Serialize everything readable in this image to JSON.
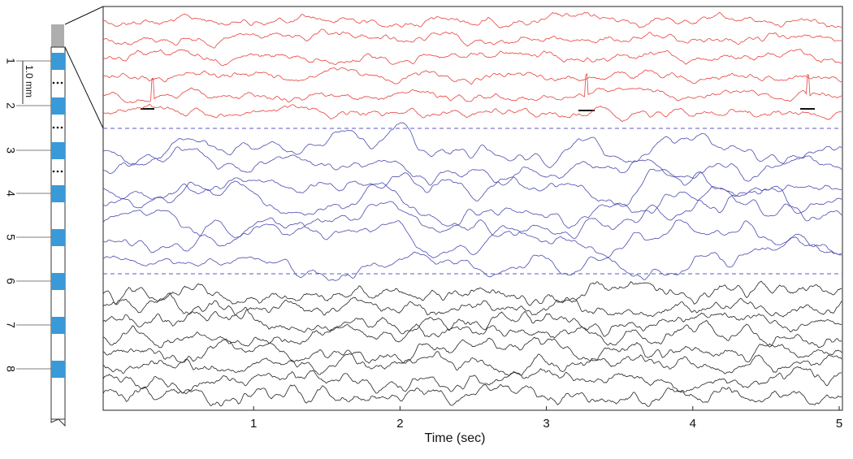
{
  "chart_data": {
    "type": "line",
    "xlabel": "Time (sec)",
    "xlim": [
      0,
      5
    ],
    "xticks": [
      1,
      2,
      3,
      4,
      5
    ],
    "electrodes": [
      "1",
      "2",
      "3",
      "4",
      "5",
      "6",
      "7",
      "8"
    ],
    "scale_label": "1.0 mm",
    "groups": [
      {
        "color": "#e8413c"
      },
      {
        "color": "#4a4ab0"
      },
      {
        "color": "#222222"
      }
    ]
  }
}
